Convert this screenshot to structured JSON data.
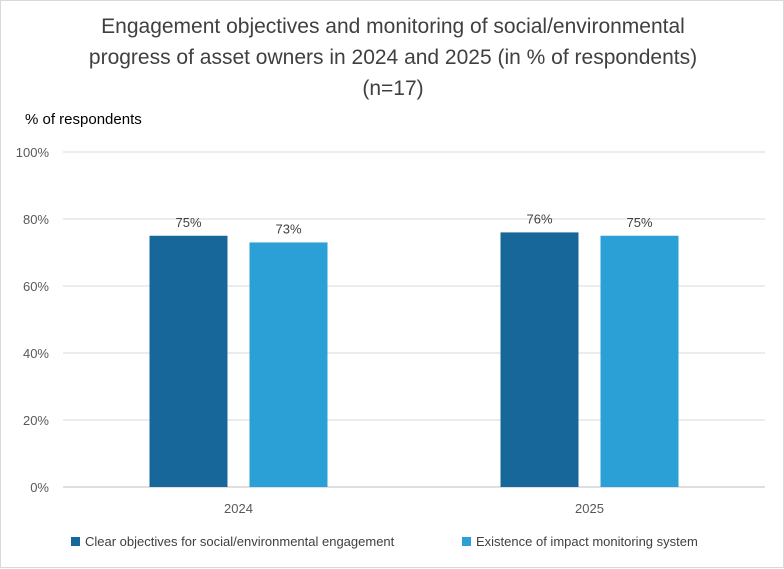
{
  "chart_data": {
    "type": "bar",
    "title": "Engagement objectives and monitoring of social/environmental progress of asset owners in 2024 and 2025 (in % of respondents) (n=17)",
    "ylabel": "% of respondents",
    "categories": [
      "2024",
      "2025"
    ],
    "series": [
      {
        "name": "Clear objectives for social/environmental engagement",
        "values": [
          75,
          76
        ],
        "labels": [
          "75%",
          "76%"
        ],
        "color": "#17679a"
      },
      {
        "name": "Existence of impact monitoring system",
        "values": [
          73,
          75
        ],
        "labels": [
          "73%",
          "75%"
        ],
        "color": "#2aa0d6"
      }
    ],
    "ylim": [
      0,
      100
    ],
    "yticks": [
      "0%",
      "20%",
      "40%",
      "60%",
      "80%",
      "100%"
    ],
    "ytick_values": [
      0,
      20,
      40,
      60,
      80,
      100
    ],
    "grid": true,
    "legend_position": "bottom"
  }
}
